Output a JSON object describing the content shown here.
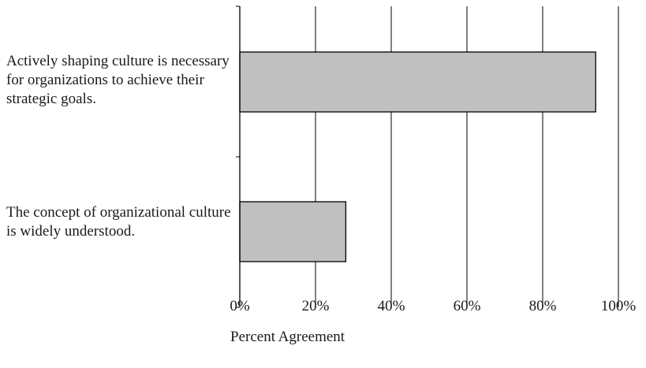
{
  "chart_data": {
    "type": "bar",
    "orientation": "horizontal",
    "categories": [
      "Actively shaping culture is necessary for organizations to achieve their strategic goals.",
      "The concept of organizational culture is widely understood."
    ],
    "values": [
      94,
      28
    ],
    "xlabel": "Percent Agreement",
    "ylabel": "",
    "xlim": [
      0,
      100
    ],
    "xticks": [
      "0%",
      "20%",
      "40%",
      "60%",
      "80%",
      "100%"
    ],
    "grid": "vertical",
    "bar_color": "#c0c0c0",
    "bar_stroke": "#000000"
  }
}
